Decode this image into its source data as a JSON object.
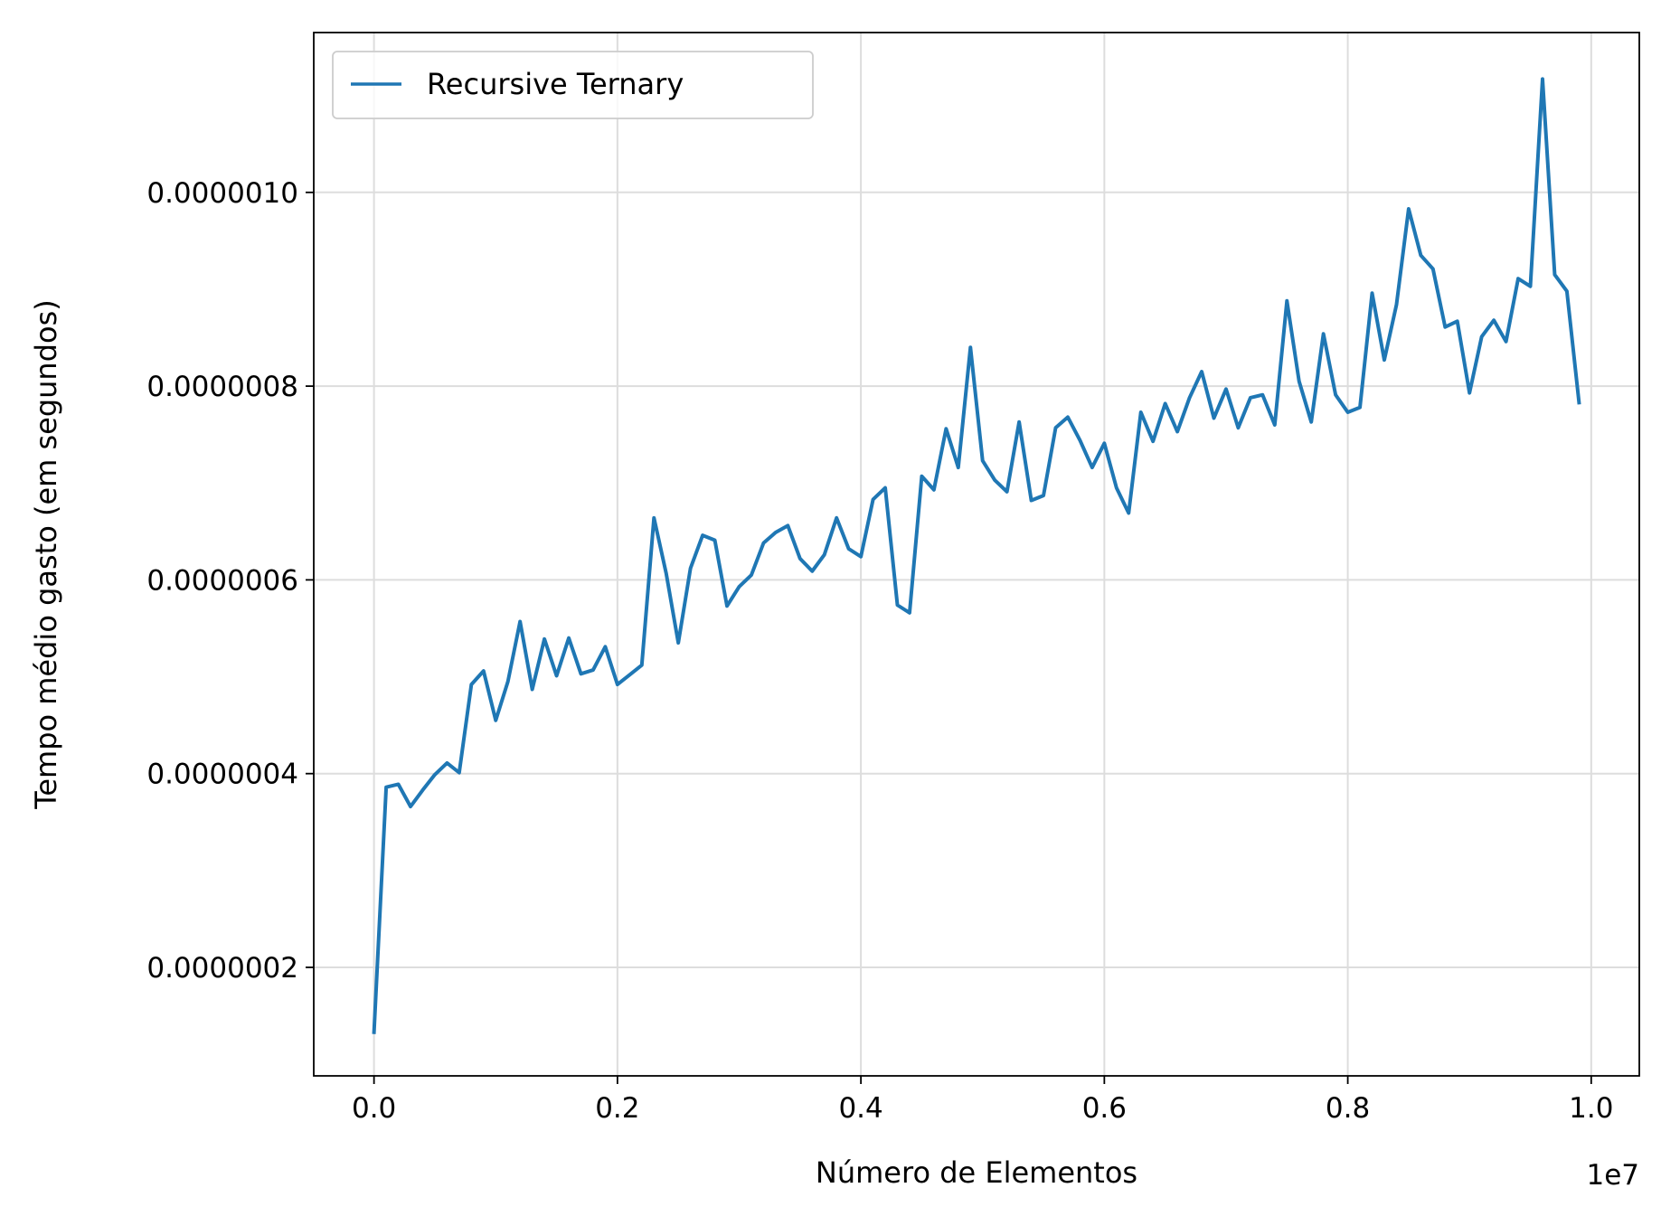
{
  "chart_data": {
    "type": "line",
    "xlabel": "Número de Elementos",
    "ylabel": "Tempo médio gasto (em segundos)",
    "x_offset_label": "1e7",
    "xlim": [
      -0.0495,
      1.0395
    ],
    "ylim": [
      8.8e-08,
      1.165e-06
    ],
    "xticks": [
      0.0,
      0.2,
      0.4,
      0.6,
      0.8,
      1.0
    ],
    "xtick_labels": [
      "0.0",
      "0.2",
      "0.4",
      "0.6",
      "0.8",
      "1.0"
    ],
    "yticks": [
      2e-07,
      4e-07,
      6e-07,
      8e-07,
      1e-06
    ],
    "ytick_labels": [
      "0.0000002",
      "0.0000004",
      "0.0000006",
      "0.0000008",
      "0.0000010"
    ],
    "grid": true,
    "legend_position": "top-left",
    "colors": {
      "series": "#1f77b4",
      "grid": "#dddddd",
      "axes": "#000000"
    },
    "series": [
      {
        "name": "Recursive Ternary",
        "x": [
          0.0,
          0.01,
          0.02,
          0.03,
          0.04,
          0.05,
          0.06,
          0.07,
          0.08,
          0.09,
          0.1,
          0.11,
          0.12,
          0.13,
          0.14,
          0.15,
          0.16,
          0.17,
          0.18,
          0.19,
          0.2,
          0.21,
          0.22,
          0.23,
          0.24,
          0.25,
          0.26,
          0.27,
          0.28,
          0.29,
          0.3,
          0.31,
          0.32,
          0.33,
          0.34,
          0.35,
          0.36,
          0.37,
          0.38,
          0.39,
          0.4,
          0.41,
          0.42,
          0.43,
          0.44,
          0.45,
          0.46,
          0.47,
          0.48,
          0.49,
          0.5,
          0.51,
          0.52,
          0.53,
          0.54,
          0.55,
          0.56,
          0.57,
          0.58,
          0.59,
          0.6,
          0.61,
          0.62,
          0.63,
          0.64,
          0.65,
          0.66,
          0.67,
          0.68,
          0.69,
          0.7,
          0.71,
          0.72,
          0.73,
          0.74,
          0.75,
          0.76,
          0.77,
          0.78,
          0.79,
          0.8,
          0.81,
          0.82,
          0.83,
          0.84,
          0.85,
          0.86,
          0.87,
          0.88,
          0.89,
          0.9,
          0.91,
          0.92,
          0.93,
          0.94,
          0.95,
          0.96,
          0.97,
          0.98,
          0.99
        ],
        "values": [
          1.33e-07,
          3.86e-07,
          3.89e-07,
          3.66e-07,
          3.83e-07,
          3.99e-07,
          4.11e-07,
          4.01e-07,
          4.92e-07,
          5.06e-07,
          4.55e-07,
          4.95e-07,
          5.57e-07,
          4.87e-07,
          5.39e-07,
          5.01e-07,
          5.4e-07,
          5.03e-07,
          5.07e-07,
          5.31e-07,
          4.92e-07,
          5.02e-07,
          5.12e-07,
          6.64e-07,
          6.07e-07,
          5.35e-07,
          6.12e-07,
          6.46e-07,
          6.41e-07,
          5.73e-07,
          5.93e-07,
          6.05e-07,
          6.38e-07,
          6.49e-07,
          6.56e-07,
          6.22e-07,
          6.09e-07,
          6.26e-07,
          6.64e-07,
          6.32e-07,
          6.24e-07,
          6.83e-07,
          6.95e-07,
          5.74e-07,
          5.66e-07,
          7.07e-07,
          6.93e-07,
          7.56e-07,
          7.16e-07,
          8.4e-07,
          7.23e-07,
          7.03e-07,
          6.91e-07,
          7.63e-07,
          6.82e-07,
          6.87e-07,
          7.57e-07,
          7.68e-07,
          7.44e-07,
          7.16e-07,
          7.41e-07,
          6.95e-07,
          6.69e-07,
          7.73e-07,
          7.43e-07,
          7.82e-07,
          7.53e-07,
          7.88e-07,
          8.15e-07,
          7.67e-07,
          7.97e-07,
          7.57e-07,
          7.88e-07,
          7.91e-07,
          7.6e-07,
          8.88e-07,
          8.05e-07,
          7.63e-07,
          8.54e-07,
          7.91e-07,
          7.73e-07,
          7.78e-07,
          8.96e-07,
          8.27e-07,
          8.84e-07,
          9.83e-07,
          9.35e-07,
          9.21e-07,
          8.61e-07,
          8.67e-07,
          7.93e-07,
          8.51e-07,
          8.68e-07,
          8.46e-07,
          9.11e-07,
          9.03e-07,
          1.117e-06,
          9.15e-07,
          8.98e-07,
          7.83e-07
        ]
      }
    ]
  }
}
